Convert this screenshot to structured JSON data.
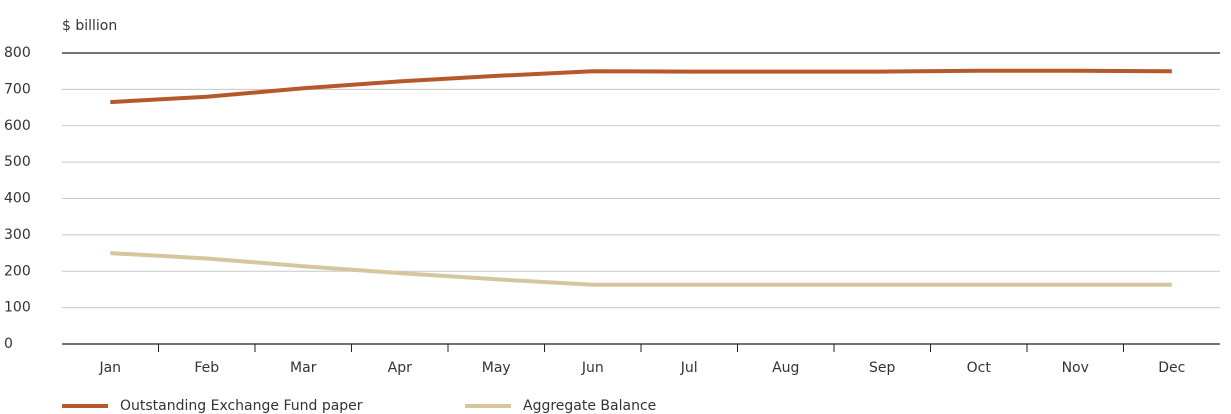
{
  "chart_data": {
    "type": "line",
    "y_label": "$ billion",
    "categories": [
      "Jan",
      "Feb",
      "Mar",
      "Apr",
      "May",
      "Jun",
      "Jul",
      "Aug",
      "Sep",
      "Oct",
      "Nov",
      "Dec"
    ],
    "series": [
      {
        "name": "Outstanding Exchange Fund paper",
        "color": "#b5592a",
        "values": [
          665,
          680,
          703,
          722,
          737,
          750,
          749,
          749,
          749,
          751,
          751,
          750
        ]
      },
      {
        "name": "Aggregate Balance",
        "color": "#d6c69e",
        "values": [
          250,
          235,
          214,
          195,
          178,
          163,
          163,
          163,
          163,
          163,
          163,
          163
        ]
      }
    ],
    "ylim": [
      0,
      800
    ],
    "yticks": [
      0,
      100,
      200,
      300,
      400,
      500,
      600,
      700,
      800
    ],
    "grid": true,
    "legend": "bottom-left"
  }
}
